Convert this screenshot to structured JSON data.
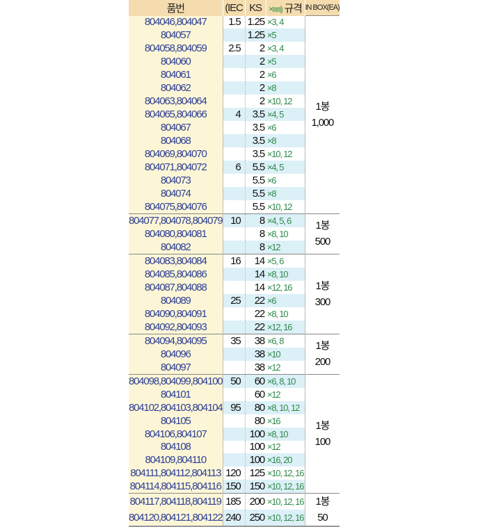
{
  "header": {
    "part": "품번",
    "iec": "(IEC",
    "ks": "KS",
    "spec_x": "×㎜)",
    "spec": "규격",
    "box": "IN BOX(EA)"
  },
  "rows": [
    {
      "part": "804046,804047",
      "iec": "1.5",
      "ks": "1.25",
      "spec": "×3, 4"
    },
    {
      "part": "804057",
      "iec": "",
      "ks": "1.25",
      "spec": "×5"
    },
    {
      "part": "804058,804059",
      "iec": "2.5",
      "ks": "2",
      "spec": "×3, 4"
    },
    {
      "part": "804060",
      "iec": "",
      "ks": "2",
      "spec": "×5"
    },
    {
      "part": "804061",
      "iec": "",
      "ks": "2",
      "spec": "×6"
    },
    {
      "part": "804062",
      "iec": "",
      "ks": "2",
      "spec": "×8"
    },
    {
      "part": "804063,804064",
      "iec": "",
      "ks": "2",
      "spec": "×10, 12"
    },
    {
      "part": "804065,804066",
      "iec": "4",
      "ks": "3.5",
      "spec": "×4, 5"
    },
    {
      "part": "804067",
      "iec": "",
      "ks": "3.5",
      "spec": "×6"
    },
    {
      "part": "804068",
      "iec": "",
      "ks": "3.5",
      "spec": "×8"
    },
    {
      "part": "804069,804070",
      "iec": "",
      "ks": "3.5",
      "spec": "×10, 12"
    },
    {
      "part": "804071,804072",
      "iec": "6",
      "ks": "5.5",
      "spec": "×4, 5"
    },
    {
      "part": "804073",
      "iec": "",
      "ks": "5.5",
      "spec": "×6"
    },
    {
      "part": "804074",
      "iec": "",
      "ks": "5.5",
      "spec": "×8"
    },
    {
      "part": "804075,804076",
      "iec": "",
      "ks": "5.5",
      "spec": "×10, 12"
    },
    {
      "part": "804077,804078,804079",
      "iec": "10",
      "ks": "8",
      "spec": "×4, 5, 6"
    },
    {
      "part": "804080,804081",
      "iec": "",
      "ks": "8",
      "spec": "×8, 10"
    },
    {
      "part": "804082",
      "iec": "",
      "ks": "8",
      "spec": "×12"
    },
    {
      "part": "804083,804084",
      "iec": "16",
      "ks": "14",
      "spec": "×5, 6"
    },
    {
      "part": "804085,804086",
      "iec": "",
      "ks": "14",
      "spec": "×8, 10"
    },
    {
      "part": "804087,804088",
      "iec": "",
      "ks": "14",
      "spec": "×12, 16"
    },
    {
      "part": "804089",
      "iec": "25",
      "ks": "22",
      "spec": "×6"
    },
    {
      "part": "804090,804091",
      "iec": "",
      "ks": "22",
      "spec": "×8, 10"
    },
    {
      "part": "804092,804093",
      "iec": "",
      "ks": "22",
      "spec": "×12, 16"
    },
    {
      "part": "804094,804095",
      "iec": "35",
      "ks": "38",
      "spec": "×6, 8"
    },
    {
      "part": "804096",
      "iec": "",
      "ks": "38",
      "spec": "×10"
    },
    {
      "part": "804097",
      "iec": "",
      "ks": "38",
      "spec": "×12"
    },
    {
      "part": "804098,804099,804100",
      "iec": "50",
      "ks": "60",
      "spec": "×6, 8, 10"
    },
    {
      "part": "804101",
      "iec": "",
      "ks": "60",
      "spec": "×12"
    },
    {
      "part": "804102,804103,804104",
      "iec": "95",
      "ks": "80",
      "spec": "×8, 10, 12"
    },
    {
      "part": "804105",
      "iec": "",
      "ks": "80",
      "spec": "×16"
    },
    {
      "part": "804106,804107",
      "iec": "",
      "ks": "100",
      "spec": "×8, 10"
    },
    {
      "part": "804108",
      "iec": "",
      "ks": "100",
      "spec": "×12"
    },
    {
      "part": "804109,804110",
      "iec": "",
      "ks": "100",
      "spec": "×16, 20"
    },
    {
      "part": "804111,804112,804113",
      "iec": "120",
      "ks": "125",
      "spec": "×10, 12, 16"
    },
    {
      "part": "804114,804115,804116",
      "iec": "150",
      "ks": "150",
      "spec": "×10, 12, 16"
    },
    {
      "part": "804117,804118,804119",
      "iec": "185",
      "ks": "200",
      "spec": "×10, 12, 16"
    },
    {
      "part": "804120,804121,804122",
      "iec": "240",
      "ks": "250",
      "spec": "×10, 12, 16"
    }
  ],
  "groups": [
    {
      "unit": "1봉",
      "qty": "1,000",
      "rows": 15
    },
    {
      "unit": "1봉",
      "qty": "500",
      "rows": 3
    },
    {
      "unit": "1봉",
      "qty": "300",
      "rows": 6
    },
    {
      "unit": "1봉",
      "qty": "200",
      "rows": 3
    },
    {
      "unit": "1봉",
      "qty": "100",
      "rows": 9
    },
    {
      "unit": "1봉",
      "qty": "50",
      "rows": 2
    }
  ]
}
